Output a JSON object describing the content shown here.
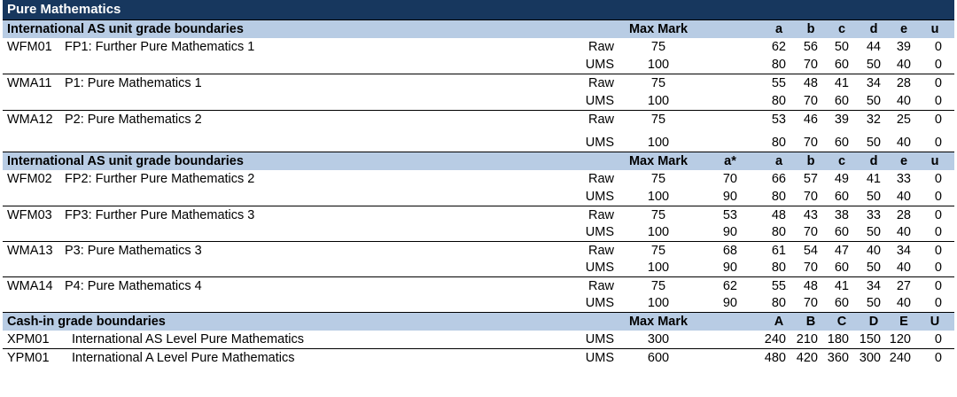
{
  "title": "Pure Mathematics",
  "as_section_1": {
    "heading": "International AS unit grade boundaries",
    "max_mark_label": "Max Mark",
    "grades": [
      "a",
      "b",
      "c",
      "d",
      "e",
      "u"
    ],
    "units": [
      {
        "code": "WFM01",
        "name": "FP1: Further Pure Mathematics 1",
        "raw_label": "Raw",
        "ums_label": "UMS",
        "raw_max": "75",
        "ums_max": "100",
        "raw": [
          "62",
          "56",
          "50",
          "44",
          "39",
          "0"
        ],
        "ums": [
          "80",
          "70",
          "60",
          "50",
          "40",
          "0"
        ]
      },
      {
        "code": "WMA11",
        "name": "P1: Pure Mathematics 1",
        "raw_label": "Raw",
        "ums_label": "UMS",
        "raw_max": "75",
        "ums_max": "100",
        "raw": [
          "55",
          "48",
          "41",
          "34",
          "28",
          "0"
        ],
        "ums": [
          "80",
          "70",
          "60",
          "50",
          "40",
          "0"
        ]
      },
      {
        "code": "WMA12",
        "name": "P2: Pure Mathematics 2",
        "raw_label": "Raw",
        "ums_label": "UMS",
        "raw_max": "75",
        "ums_max": "100",
        "raw": [
          "53",
          "46",
          "39",
          "32",
          "25",
          "0"
        ],
        "ums": [
          "80",
          "70",
          "60",
          "50",
          "40",
          "0"
        ]
      }
    ]
  },
  "as_section_2": {
    "heading": "International AS unit grade boundaries",
    "max_mark_label": "Max Mark",
    "grades": [
      "a*",
      "a",
      "b",
      "c",
      "d",
      "e",
      "u"
    ],
    "units": [
      {
        "code": "WFM02",
        "name": "FP2: Further Pure Mathematics 2",
        "raw_label": "Raw",
        "ums_label": "UMS",
        "raw_max": "75",
        "ums_max": "100",
        "raw": [
          "70",
          "66",
          "57",
          "49",
          "41",
          "33",
          "0"
        ],
        "ums": [
          "90",
          "80",
          "70",
          "60",
          "50",
          "40",
          "0"
        ]
      },
      {
        "code": "WFM03",
        "name": "FP3: Further Pure Mathematics 3",
        "raw_label": "Raw",
        "ums_label": "UMS",
        "raw_max": "75",
        "ums_max": "100",
        "raw": [
          "53",
          "48",
          "43",
          "38",
          "33",
          "28",
          "0"
        ],
        "ums": [
          "90",
          "80",
          "70",
          "60",
          "50",
          "40",
          "0"
        ]
      },
      {
        "code": "WMA13",
        "name": "P3: Pure Mathematics 3",
        "raw_label": "Raw",
        "ums_label": "UMS",
        "raw_max": "75",
        "ums_max": "100",
        "raw": [
          "68",
          "61",
          "54",
          "47",
          "40",
          "34",
          "0"
        ],
        "ums": [
          "90",
          "80",
          "70",
          "60",
          "50",
          "40",
          "0"
        ]
      },
      {
        "code": "WMA14",
        "name": "P4: Pure Mathematics 4",
        "raw_label": "Raw",
        "ums_label": "UMS",
        "raw_max": "75",
        "ums_max": "100",
        "raw": [
          "62",
          "55",
          "48",
          "41",
          "34",
          "27",
          "0"
        ],
        "ums": [
          "90",
          "80",
          "70",
          "60",
          "50",
          "40",
          "0"
        ]
      }
    ]
  },
  "cashin": {
    "heading": "Cash-in grade boundaries",
    "max_mark_label": "Max Mark",
    "grades": [
      "A",
      "B",
      "C",
      "D",
      "E",
      "U"
    ],
    "rows": [
      {
        "code": "XPM01",
        "name": "International AS Level Pure Mathematics",
        "label": "UMS",
        "max": "300",
        "values": [
          "240",
          "210",
          "180",
          "150",
          "120",
          "0"
        ]
      },
      {
        "code": "YPM01",
        "name": "International A Level Pure Mathematics",
        "label": "UMS",
        "max": "600",
        "values": [
          "480",
          "420",
          "360",
          "300",
          "240",
          "0"
        ]
      }
    ]
  }
}
